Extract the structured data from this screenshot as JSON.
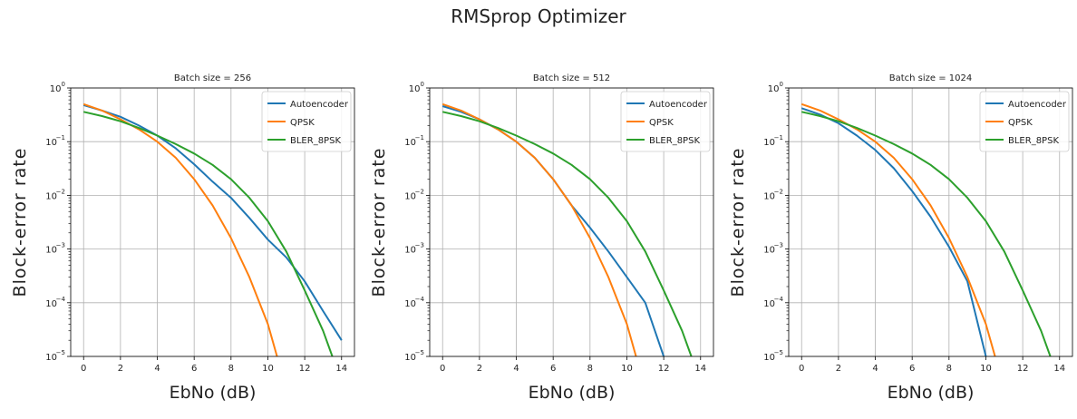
{
  "figure": {
    "title": "RMSprop Optimizer"
  },
  "chart_data": [
    {
      "type": "line",
      "title": "Batch size = 256",
      "xlabel": "EbNo (dB)",
      "ylabel": "Block-error rate",
      "xlim": [
        -0.7,
        14.7
      ],
      "ylim": [
        1e-05,
        1
      ],
      "yscale": "log",
      "xticks": [
        0,
        2,
        4,
        6,
        8,
        10,
        12,
        14
      ],
      "yticks": [
        1,
        0.1,
        0.01,
        0.001,
        0.0001,
        1e-05
      ],
      "ytick_exponents": [
        "0",
        "−1",
        "−2",
        "−3",
        "−4",
        "−5"
      ],
      "grid": true,
      "legend_position": "top-right",
      "series": [
        {
          "name": "Autoencoder",
          "color": "#1f77b4",
          "x": [
            0,
            1,
            2,
            3,
            4,
            5,
            6,
            7,
            8,
            9,
            10,
            11,
            12,
            13,
            14
          ],
          "y": [
            0.48,
            0.38,
            0.29,
            0.2,
            0.13,
            0.075,
            0.038,
            0.018,
            0.009,
            0.0038,
            0.0015,
            0.0007,
            0.00025,
            7e-05,
            2e-05
          ]
        },
        {
          "name": "QPSK",
          "color": "#ff7f0e",
          "x": [
            0,
            1,
            2,
            3,
            4,
            5,
            6,
            7,
            8,
            9,
            10,
            10.5
          ],
          "y": [
            0.5,
            0.38,
            0.26,
            0.17,
            0.1,
            0.05,
            0.02,
            0.0065,
            0.0016,
            0.0003,
            4e-05,
            1e-05
          ]
        },
        {
          "name": "BLER_8PSK",
          "color": "#2ca02c",
          "x": [
            0,
            1,
            2,
            3,
            4,
            5,
            6,
            7,
            8,
            9,
            10,
            11,
            12,
            13,
            13.5
          ],
          "y": [
            0.36,
            0.3,
            0.24,
            0.18,
            0.13,
            0.09,
            0.06,
            0.037,
            0.02,
            0.009,
            0.0033,
            0.0009,
            0.00017,
            3e-05,
            1e-05
          ]
        }
      ]
    },
    {
      "type": "line",
      "title": "Batch size = 512",
      "xlabel": "EbNo (dB)",
      "ylabel": "Block-error rate",
      "xlim": [
        -0.7,
        14.7
      ],
      "ylim": [
        1e-05,
        1
      ],
      "yscale": "log",
      "xticks": [
        0,
        2,
        4,
        6,
        8,
        10,
        12,
        14
      ],
      "yticks": [
        1,
        0.1,
        0.01,
        0.001,
        0.0001,
        1e-05
      ],
      "ytick_exponents": [
        "0",
        "−1",
        "−2",
        "−3",
        "−4",
        "−5"
      ],
      "grid": true,
      "legend_position": "top-right",
      "series": [
        {
          "name": "Autoencoder",
          "color": "#1f77b4",
          "x": [
            0,
            1,
            2,
            3,
            4,
            5,
            6,
            7,
            8,
            9,
            10,
            11,
            12
          ],
          "y": [
            0.46,
            0.36,
            0.26,
            0.17,
            0.1,
            0.05,
            0.02,
            0.0065,
            0.0025,
            0.0009,
            0.0003,
            0.0001,
            1e-05
          ]
        },
        {
          "name": "QPSK",
          "color": "#ff7f0e",
          "x": [
            0,
            1,
            2,
            3,
            4,
            5,
            6,
            7,
            8,
            9,
            10,
            10.5
          ],
          "y": [
            0.5,
            0.38,
            0.26,
            0.17,
            0.1,
            0.05,
            0.02,
            0.0065,
            0.0016,
            0.0003,
            4e-05,
            1e-05
          ]
        },
        {
          "name": "BLER_8PSK",
          "color": "#2ca02c",
          "x": [
            0,
            1,
            2,
            3,
            4,
            5,
            6,
            7,
            8,
            9,
            10,
            11,
            12,
            13,
            13.5
          ],
          "y": [
            0.36,
            0.3,
            0.24,
            0.18,
            0.13,
            0.09,
            0.06,
            0.037,
            0.02,
            0.009,
            0.0033,
            0.0009,
            0.00017,
            3e-05,
            1e-05
          ]
        }
      ]
    },
    {
      "type": "line",
      "title": "Batch size = 1024",
      "xlabel": "EbNo (dB)",
      "ylabel": "Block-error rate",
      "xlim": [
        -0.7,
        14.7
      ],
      "ylim": [
        1e-05,
        1
      ],
      "yscale": "log",
      "xticks": [
        0,
        2,
        4,
        6,
        8,
        10,
        12,
        14
      ],
      "yticks": [
        1,
        0.1,
        0.01,
        0.001,
        0.0001,
        1e-05
      ],
      "ytick_exponents": [
        "0",
        "−1",
        "−2",
        "−3",
        "−4",
        "−5"
      ],
      "grid": true,
      "legend_position": "top-right",
      "series": [
        {
          "name": "Autoencoder",
          "color": "#1f77b4",
          "x": [
            0,
            1,
            2,
            3,
            4,
            5,
            6,
            7,
            8,
            9,
            10
          ],
          "y": [
            0.42,
            0.32,
            0.22,
            0.13,
            0.07,
            0.032,
            0.012,
            0.004,
            0.0011,
            0.00025,
            1e-05
          ]
        },
        {
          "name": "QPSK",
          "color": "#ff7f0e",
          "x": [
            0,
            1,
            2,
            3,
            4,
            5,
            6,
            7,
            8,
            9,
            10,
            10.5
          ],
          "y": [
            0.5,
            0.38,
            0.26,
            0.17,
            0.1,
            0.05,
            0.02,
            0.0065,
            0.0016,
            0.0003,
            4e-05,
            1e-05
          ]
        },
        {
          "name": "BLER_8PSK",
          "color": "#2ca02c",
          "x": [
            0,
            1,
            2,
            3,
            4,
            5,
            6,
            7,
            8,
            9,
            10,
            11,
            12,
            13,
            13.5
          ],
          "y": [
            0.36,
            0.3,
            0.24,
            0.18,
            0.13,
            0.09,
            0.06,
            0.037,
            0.02,
            0.009,
            0.0033,
            0.0009,
            0.00017,
            3e-05,
            1e-05
          ]
        }
      ]
    }
  ]
}
